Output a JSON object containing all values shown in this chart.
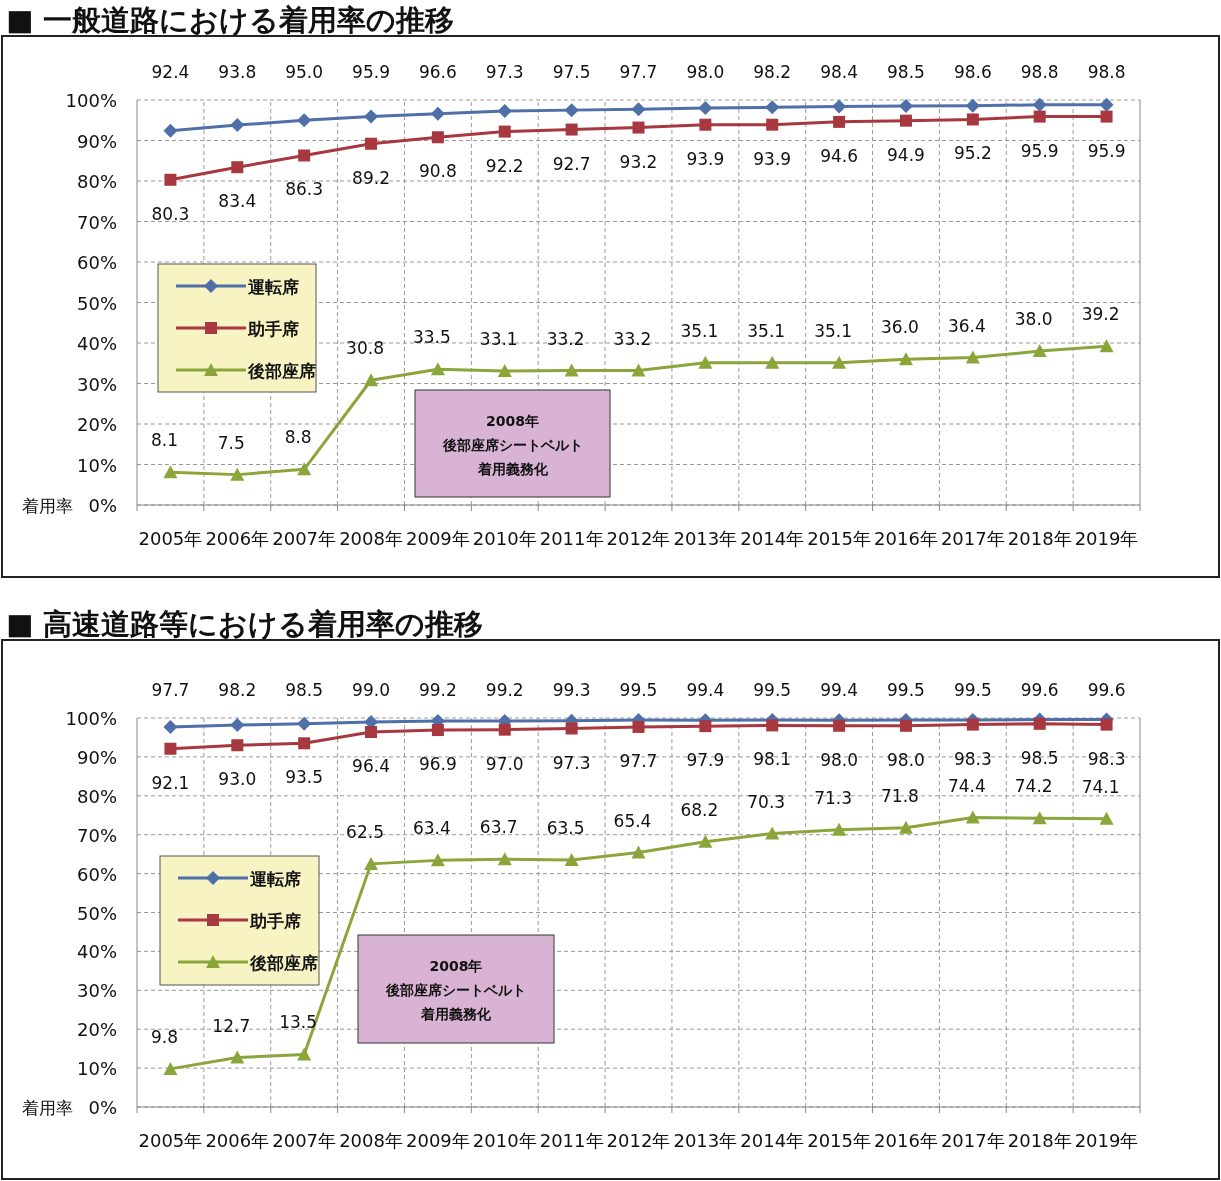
{
  "chart_data": [
    {
      "type": "line",
      "title": "■ 一般道路における着用率の推移",
      "ylabel": "着用率",
      "categories": [
        "2005年",
        "2006年",
        "2007年",
        "2008年",
        "2009年",
        "2010年",
        "2011年",
        "2012年",
        "2013年",
        "2014年",
        "2015年",
        "2016年",
        "2017年",
        "2018年",
        "2019年"
      ],
      "series": [
        {
          "name": "運転席",
          "color": "#4f6fa8",
          "marker": "diamond",
          "values": [
            92.4,
            93.8,
            95.0,
            95.9,
            96.6,
            97.3,
            97.5,
            97.7,
            98.0,
            98.2,
            98.4,
            98.5,
            98.6,
            98.8,
            98.8
          ],
          "value_labels": [
            "92.4",
            "93.8",
            "95.0",
            "95.9",
            "96.6",
            "97.3",
            "97.5",
            "97.7",
            "98.0",
            "98.2",
            "98.4",
            "98.5",
            "98.6",
            "98.8",
            "98.8"
          ]
        },
        {
          "name": "助手席",
          "color": "#a8383f",
          "marker": "square",
          "values": [
            80.3,
            83.4,
            86.3,
            89.2,
            90.8,
            92.2,
            92.7,
            93.2,
            93.9,
            93.9,
            94.6,
            94.9,
            95.2,
            95.9,
            95.9
          ],
          "value_labels": [
            "80.3",
            "83.4",
            "86.3",
            "89.2",
            "90.8",
            "92.2",
            "92.7",
            "93.2",
            "93.9",
            "93.9",
            "94.6",
            "94.9",
            "95.2",
            "95.9",
            "95.9"
          ]
        },
        {
          "name": "後部座席",
          "color": "#8aa63a",
          "marker": "triangle",
          "values": [
            8.1,
            7.5,
            8.8,
            30.8,
            33.5,
            33.1,
            33.2,
            33.2,
            35.1,
            35.1,
            35.1,
            36.0,
            36.4,
            38.0,
            39.2
          ],
          "value_labels": [
            "8.1",
            "7.5",
            "8.8",
            "30.8",
            "33.5",
            "33.1",
            "33.2",
            "33.2",
            "35.1",
            "35.1",
            "35.1",
            "36.0",
            "36.4",
            "38.0",
            "39.2"
          ]
        }
      ],
      "ylim": [
        0,
        100
      ],
      "yticks": [
        {
          "value": 0,
          "label": "0%"
        },
        {
          "value": 10,
          "label": "10%"
        },
        {
          "value": 20,
          "label": "20%"
        },
        {
          "value": 30,
          "label": "30%"
        },
        {
          "value": 40,
          "label": "40%"
        },
        {
          "value": 50,
          "label": "50%"
        },
        {
          "value": 60,
          "label": "60%"
        },
        {
          "value": 70,
          "label": "70%"
        },
        {
          "value": 80,
          "label": "80%"
        },
        {
          "value": 90,
          "label": "90%"
        },
        {
          "value": 100,
          "label": "100%"
        }
      ],
      "grid": true,
      "legend": "left",
      "annotations": [
        "2008年",
        "後部座席シートベルト",
        "着用義務化"
      ]
    },
    {
      "type": "line",
      "title": "■ 高速道路等における着用率の推移",
      "ylabel": "着用率",
      "categories": [
        "2005年",
        "2006年",
        "2007年",
        "2008年",
        "2009年",
        "2010年",
        "2011年",
        "2012年",
        "2013年",
        "2014年",
        "2015年",
        "2016年",
        "2017年",
        "2018年",
        "2019年"
      ],
      "series": [
        {
          "name": "運転席",
          "color": "#4f6fa8",
          "marker": "diamond",
          "values": [
            97.7,
            98.2,
            98.5,
            99.0,
            99.2,
            99.2,
            99.3,
            99.5,
            99.4,
            99.5,
            99.4,
            99.5,
            99.5,
            99.6,
            99.6
          ],
          "value_labels": [
            "97.7",
            "98.2",
            "98.5",
            "99.0",
            "99.2",
            "99.2",
            "99.3",
            "99.5",
            "99.4",
            "99.5",
            "99.4",
            "99.5",
            "99.5",
            "99.6",
            "99.6"
          ]
        },
        {
          "name": "助手席",
          "color": "#a8383f",
          "marker": "square",
          "values": [
            92.1,
            93.0,
            93.5,
            96.4,
            96.9,
            97.0,
            97.3,
            97.7,
            97.9,
            98.1,
            98.0,
            98.0,
            98.3,
            98.5,
            98.3
          ],
          "value_labels": [
            "92.1",
            "93.0",
            "93.5",
            "96.4",
            "96.9",
            "97.0",
            "97.3",
            "97.7",
            "97.9",
            "98.1",
            "98.0",
            "98.0",
            "98.3",
            "98.5",
            "98.3"
          ]
        },
        {
          "name": "後部座席",
          "color": "#8aa63a",
          "marker": "triangle",
          "values": [
            9.8,
            12.7,
            13.5,
            62.5,
            63.4,
            63.7,
            63.5,
            65.4,
            68.2,
            70.3,
            71.3,
            71.8,
            74.4,
            74.2,
            74.1
          ],
          "value_labels": [
            "9.8",
            "12.7",
            "13.5",
            "62.5",
            "63.4",
            "63.7",
            "63.5",
            "65.4",
            "68.2",
            "70.3",
            "71.3",
            "71.8",
            "74.4",
            "74.2",
            "74.1"
          ]
        }
      ],
      "ylim": [
        0,
        100
      ],
      "yticks": [
        {
          "value": 0,
          "label": "0%"
        },
        {
          "value": 10,
          "label": "10%"
        },
        {
          "value": 20,
          "label": "20%"
        },
        {
          "value": 30,
          "label": "30%"
        },
        {
          "value": 40,
          "label": "40%"
        },
        {
          "value": 50,
          "label": "50%"
        },
        {
          "value": 60,
          "label": "60%"
        },
        {
          "value": 70,
          "label": "70%"
        },
        {
          "value": 80,
          "label": "80%"
        },
        {
          "value": 90,
          "label": "90%"
        },
        {
          "value": 100,
          "label": "100%"
        }
      ],
      "grid": true,
      "legend": "left",
      "annotations": [
        "2008年",
        "後部座席シートベルト",
        "着用義務化"
      ]
    }
  ]
}
